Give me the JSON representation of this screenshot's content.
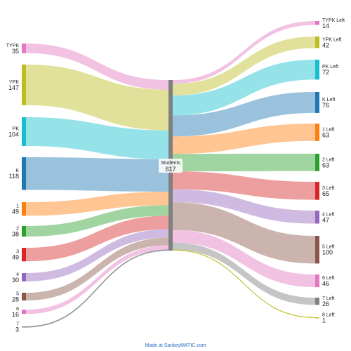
{
  "chart_data": {
    "type": "sankey",
    "title": "",
    "center_node": {
      "name": "Students",
      "value": 617,
      "color": "#808080"
    },
    "sources": [
      {
        "name": "TYPK",
        "value": 35,
        "color": "#e377c2"
      },
      {
        "name": "YPK",
        "value": 147,
        "color": "#bcbd22"
      },
      {
        "name": "PK",
        "value": 104,
        "color": "#17becf"
      },
      {
        "name": "K",
        "value": 118,
        "color": "#1f77b4"
      },
      {
        "name": "1",
        "value": 49,
        "color": "#ff7f0e"
      },
      {
        "name": "2",
        "value": 38,
        "color": "#2ca02c"
      },
      {
        "name": "3",
        "value": 49,
        "color": "#d62728"
      },
      {
        "name": "4",
        "value": 30,
        "color": "#9467bd"
      },
      {
        "name": "5",
        "value": 28,
        "color": "#8c564b"
      },
      {
        "name": "6",
        "value": 16,
        "color": "#e377c2"
      },
      {
        "name": "7",
        "value": 3,
        "color": "#7f7f7f"
      }
    ],
    "targets": [
      {
        "name": "TYPK Left",
        "value": 14,
        "color": "#e377c2"
      },
      {
        "name": "YPK Left",
        "value": 42,
        "color": "#bcbd22"
      },
      {
        "name": "PK Left",
        "value": 72,
        "color": "#17becf"
      },
      {
        "name": "K Left",
        "value": 76,
        "color": "#1f77b4"
      },
      {
        "name": "1 Left",
        "value": 63,
        "color": "#ff7f0e"
      },
      {
        "name": "2 Left",
        "value": 63,
        "color": "#2ca02c"
      },
      {
        "name": "3 Left",
        "value": 65,
        "color": "#d62728"
      },
      {
        "name": "4 Left",
        "value": 47,
        "color": "#9467bd"
      },
      {
        "name": "5 Left",
        "value": 100,
        "color": "#8c564b"
      },
      {
        "name": "6 Left",
        "value": 46,
        "color": "#e377c2"
      },
      {
        "name": "7 Left",
        "value": 26,
        "color": "#7f7f7f"
      },
      {
        "name": "8 Left",
        "value": 1,
        "color": "#bcbd22"
      }
    ]
  },
  "footer": {
    "credit": "Made at SankeyMATIC.com"
  }
}
